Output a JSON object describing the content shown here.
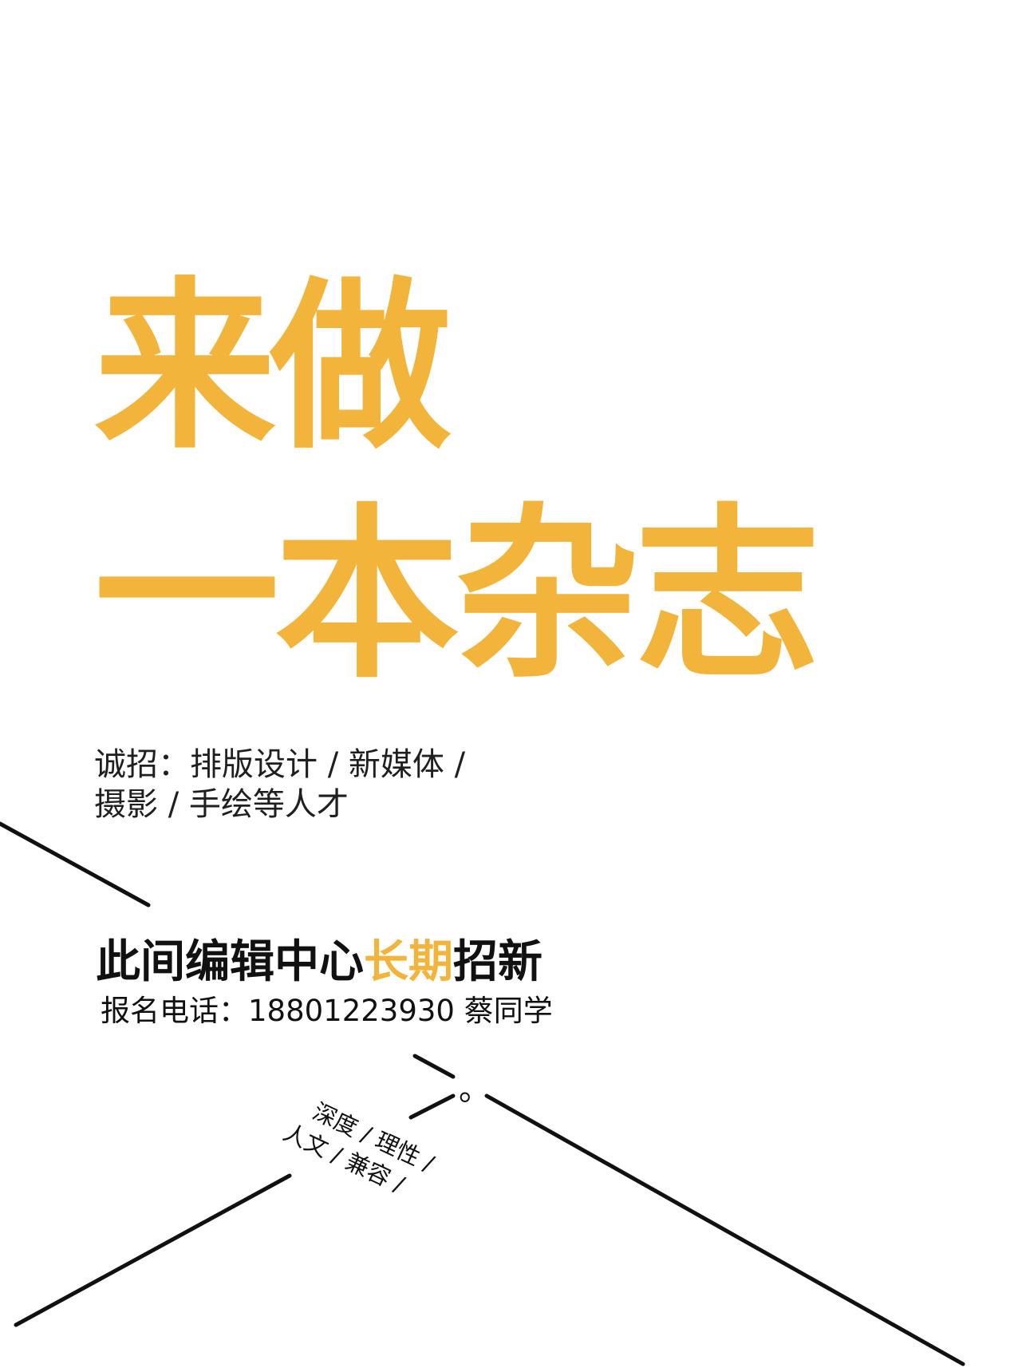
{
  "colors": {
    "accent": "#F2B43A",
    "text": "#111111",
    "line": "#111111",
    "background": "#FFFFFF"
  },
  "headline": {
    "line1": "来做",
    "line2": "一本杂志"
  },
  "recruit": {
    "line1": "诚招：排版设计 / 新媒体 /",
    "line2": "摄影 / 手绘等人才"
  },
  "title": {
    "part1": "此间编辑中心",
    "highlight": "长期",
    "part2": "招新"
  },
  "contact": {
    "text": "报名电话：18801223930 蔡同学"
  },
  "tagline": {
    "line1": "深度 / 理性 /",
    "line2": "人文 / 兼容 /"
  },
  "decor": {
    "period": "。"
  }
}
